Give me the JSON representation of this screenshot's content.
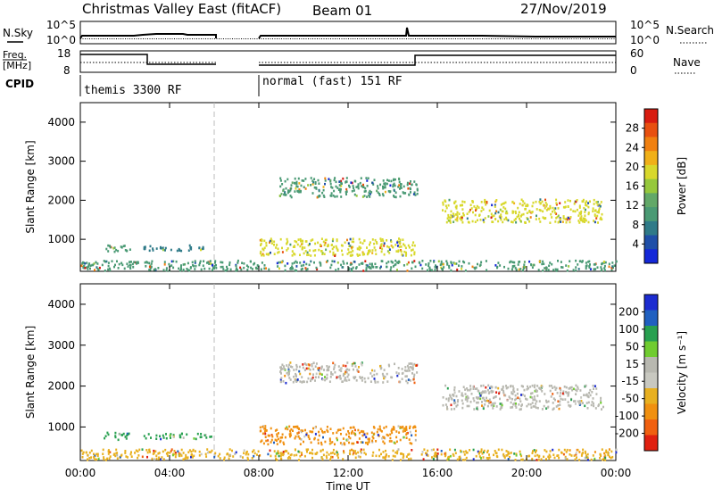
{
  "header": {
    "station": "Christmas Valley East (fitACF)",
    "beam": "Beam 01",
    "date": "27/Nov/2019"
  },
  "strip_labels": {
    "nsky": "N.Sky",
    "nsearch": "N.Search",
    "freq_line1": "Freq.",
    "freq_line2": "[MHz]",
    "nave": "Nave",
    "cpid": "CPID"
  },
  "noise_axis": {
    "left_ticks": [
      "10^5",
      "10^0"
    ],
    "right_ticks": [
      "10^5",
      "10^0"
    ]
  },
  "freq_axis": {
    "left_ticks": [
      "18",
      "8"
    ],
    "right_ticks": [
      "60",
      "0"
    ]
  },
  "cpid_labels": [
    {
      "text": "themis 3300 RF",
      "start_hour": 0
    },
    {
      "text": "normal (fast) 151 RF",
      "start_hour": 8
    }
  ],
  "colors": {
    "power_scale": [
      "#1428d8",
      "#1f4fa8",
      "#2f7a88",
      "#4a9a74",
      "#62a868",
      "#96c83c",
      "#d8d82c",
      "#f0b018",
      "#f08010",
      "#e85010",
      "#d81c10"
    ],
    "velocity_scale": [
      "#1c2cd0",
      "#2060c0",
      "#28a050",
      "#70cc30",
      "#b8b8b0",
      "#c8c8c0",
      "#e8b020",
      "#f09010",
      "#f06010",
      "#e02010"
    ]
  },
  "chart_data": [
    {
      "type": "heatmap",
      "title": "Power",
      "ylabel": "Slant Range [km]",
      "xlabel": "",
      "ylim": [
        180,
        4500
      ],
      "yticks": [
        "1000",
        "2000",
        "3000",
        "4000"
      ],
      "x_domain_hours": [
        0,
        24
      ],
      "colorbar": {
        "label": "Power [dB]",
        "ticks": [
          "4",
          "8",
          "12",
          "16",
          "20",
          "24",
          "28"
        ],
        "range": [
          0,
          32
        ]
      },
      "regions": [
        {
          "t0": 1.0,
          "t1": 2.2,
          "r0": 700,
          "r1": 900,
          "value": 10
        },
        {
          "t0": 2.8,
          "t1": 5.9,
          "r0": 730,
          "r1": 870,
          "value": 8
        },
        {
          "t0": 8.0,
          "t1": 15.0,
          "r0": 600,
          "r1": 1050,
          "value": 18
        },
        {
          "t0": 8.9,
          "t1": 15.1,
          "r0": 2100,
          "r1": 2600,
          "value": 11
        },
        {
          "t0": 16.2,
          "t1": 23.4,
          "r0": 1450,
          "r1": 2050,
          "value": 19
        },
        {
          "t0": 0,
          "t1": 24,
          "r0": 220,
          "r1": 480,
          "value": 9
        }
      ]
    },
    {
      "type": "heatmap",
      "title": "Velocity",
      "ylabel": "Slant Range [km]",
      "xlabel": "Time UT",
      "ylim": [
        180,
        4500
      ],
      "yticks": [
        "1000",
        "2000",
        "3000",
        "4000"
      ],
      "x_domain_hours": [
        0,
        24
      ],
      "xticks": [
        "00:00",
        "04:00",
        "08:00",
        "12:00",
        "16:00",
        "20:00",
        "00:00"
      ],
      "colorbar": {
        "label": "Velocity [m s⁻¹]",
        "ticks": [
          "200",
          "100",
          "50",
          "15",
          "-15",
          "-50",
          "-100",
          "-200"
        ]
      },
      "regions": [
        {
          "t0": 1.0,
          "t1": 2.2,
          "r0": 700,
          "r1": 900,
          "value": 60
        },
        {
          "t0": 2.8,
          "t1": 5.9,
          "r0": 730,
          "r1": 870,
          "value": 60
        },
        {
          "t0": 8.0,
          "t1": 15.0,
          "r0": 600,
          "r1": 1050,
          "value": -60
        },
        {
          "t0": 8.9,
          "t1": 15.1,
          "r0": 2100,
          "r1": 2600,
          "value": 0
        },
        {
          "t0": 16.2,
          "t1": 23.4,
          "r0": 1450,
          "r1": 2050,
          "value": 0
        },
        {
          "t0": 0,
          "t1": 24,
          "r0": 220,
          "r1": 480,
          "value": -30
        }
      ]
    }
  ]
}
